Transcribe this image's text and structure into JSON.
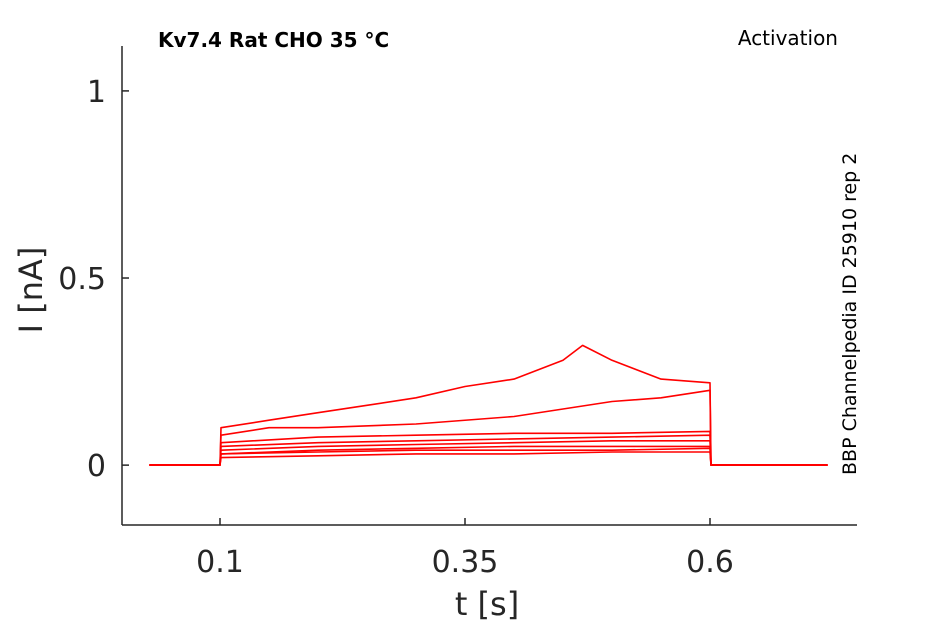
{
  "chart_data": {
    "type": "line",
    "title": "Kv7.4  Rat  CHO  35 °C",
    "protocol": "Activation",
    "source": "BBP Channelpedia ID 25910 rep 2",
    "xlabel": "t [s]",
    "ylabel": "I [nA]",
    "xlim": [
      0,
      0.75
    ],
    "ylim": [
      -0.16,
      1.12
    ],
    "xticks": [
      0.1,
      0.35,
      0.6
    ],
    "xtick_labels": [
      "0.1",
      "0.35",
      "0.6"
    ],
    "yticks": [
      0,
      0.5,
      1
    ],
    "ytick_labels": [
      "0",
      "0.5",
      "1"
    ],
    "grid": false,
    "line_color": "#ff0000",
    "series": [
      {
        "x": [
          0.028,
          0.1,
          0.101,
          0.2,
          0.3,
          0.4,
          0.5,
          0.6,
          0.601,
          0.72
        ],
        "y": [
          0.0,
          0.0,
          0.02,
          0.025,
          0.03,
          0.03,
          0.035,
          0.035,
          0.0,
          0.0
        ]
      },
      {
        "x": [
          0.028,
          0.1,
          0.101,
          0.2,
          0.3,
          0.4,
          0.5,
          0.6,
          0.601,
          0.72
        ],
        "y": [
          0.0,
          0.0,
          0.03,
          0.035,
          0.04,
          0.04,
          0.04,
          0.045,
          0.0,
          0.0
        ]
      },
      {
        "x": [
          0.028,
          0.1,
          0.101,
          0.2,
          0.3,
          0.4,
          0.5,
          0.6,
          0.601,
          0.72
        ],
        "y": [
          0.0,
          0.0,
          0.03,
          0.04,
          0.045,
          0.05,
          0.05,
          0.05,
          0.0,
          0.0
        ]
      },
      {
        "x": [
          0.028,
          0.1,
          0.101,
          0.2,
          0.3,
          0.4,
          0.5,
          0.6,
          0.601,
          0.72
        ],
        "y": [
          0.0,
          0.0,
          0.04,
          0.05,
          0.055,
          0.06,
          0.065,
          0.065,
          0.0,
          0.0
        ]
      },
      {
        "x": [
          0.028,
          0.1,
          0.101,
          0.2,
          0.3,
          0.4,
          0.5,
          0.6,
          0.601,
          0.72
        ],
        "y": [
          0.0,
          0.0,
          0.05,
          0.06,
          0.065,
          0.07,
          0.075,
          0.08,
          0.0,
          0.0
        ]
      },
      {
        "x": [
          0.028,
          0.1,
          0.101,
          0.2,
          0.3,
          0.4,
          0.5,
          0.6,
          0.601,
          0.72
        ],
        "y": [
          0.0,
          0.0,
          0.06,
          0.075,
          0.08,
          0.085,
          0.085,
          0.09,
          0.0,
          0.0
        ]
      },
      {
        "x": [
          0.028,
          0.1,
          0.101,
          0.15,
          0.2,
          0.3,
          0.4,
          0.45,
          0.5,
          0.55,
          0.6,
          0.601,
          0.72
        ],
        "y": [
          0.0,
          0.0,
          0.08,
          0.1,
          0.1,
          0.11,
          0.13,
          0.15,
          0.17,
          0.18,
          0.2,
          0.0,
          0.0
        ]
      },
      {
        "x": [
          0.028,
          0.1,
          0.101,
          0.15,
          0.2,
          0.25,
          0.3,
          0.35,
          0.4,
          0.45,
          0.47,
          0.5,
          0.55,
          0.6,
          0.601,
          0.72
        ],
        "y": [
          0.0,
          0.0,
          0.1,
          0.12,
          0.14,
          0.16,
          0.18,
          0.21,
          0.23,
          0.28,
          0.32,
          0.28,
          0.23,
          0.22,
          0.0,
          0.0
        ]
      }
    ]
  }
}
